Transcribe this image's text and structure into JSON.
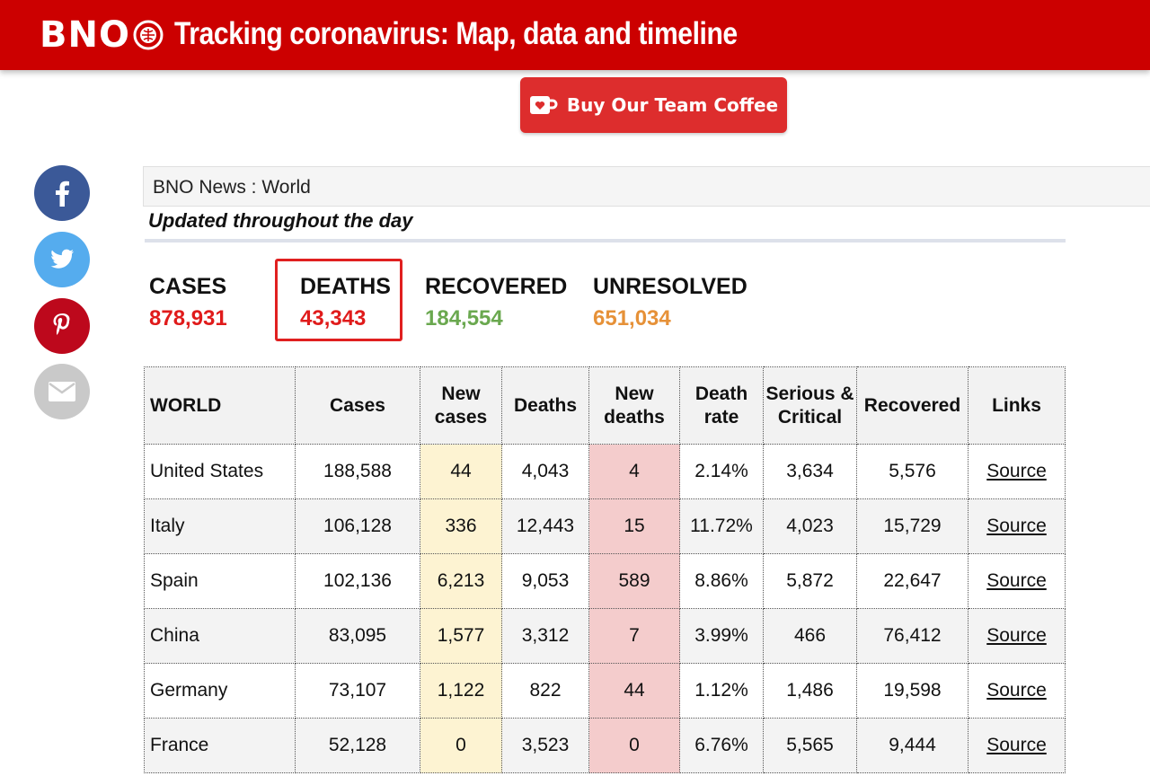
{
  "header": {
    "logo_text": "BNO",
    "title": "Tracking coronavirus: Map, data and timeline"
  },
  "coffee_button": {
    "label": "Buy Our Team Coffee",
    "icon": "coffee-cup-heart-icon"
  },
  "social": [
    {
      "name": "facebook",
      "icon": "facebook-icon",
      "color": "#3b5998"
    },
    {
      "name": "twitter",
      "icon": "twitter-icon",
      "color": "#55acee"
    },
    {
      "name": "pinterest",
      "icon": "pinterest-icon",
      "color": "#bd081c"
    },
    {
      "name": "email",
      "icon": "email-icon",
      "color": "#c9c9c9"
    }
  ],
  "breadcrumb": "BNO News : World",
  "updated_text": "Updated throughout the day",
  "stats": {
    "cases": {
      "label": "CASES",
      "value": "878,931",
      "color": "#e01b1b"
    },
    "deaths": {
      "label": "DEATHS",
      "value": "43,343",
      "color": "#e01b1b"
    },
    "recovered": {
      "label": "RECOVERED",
      "value": "184,554",
      "color": "#6aa84f"
    },
    "unresolved": {
      "label": "UNRESOLVED",
      "value": "651,034",
      "color": "#e69138"
    }
  },
  "table": {
    "headers": [
      "WORLD",
      "Cases",
      "New cases",
      "Deaths",
      "New deaths",
      "Death rate",
      "Serious & Critical",
      "Recovered",
      "Links"
    ],
    "rows": [
      [
        "United States",
        "188,588",
        "44",
        "4,043",
        "4",
        "2.14%",
        "3,634",
        "5,576",
        "Source"
      ],
      [
        "Italy",
        "106,128",
        "336",
        "12,443",
        "15",
        "11.72%",
        "4,023",
        "15,729",
        "Source"
      ],
      [
        "Spain",
        "102,136",
        "6,213",
        "9,053",
        "589",
        "8.86%",
        "5,872",
        "22,647",
        "Source"
      ],
      [
        "China",
        "83,095",
        "1,577",
        "3,312",
        "7",
        "3.99%",
        "466",
        "76,412",
        "Source"
      ],
      [
        "Germany",
        "73,107",
        "1,122",
        "822",
        "44",
        "1.12%",
        "1,486",
        "19,598",
        "Source"
      ],
      [
        "France",
        "52,128",
        "0",
        "3,523",
        "0",
        "6.76%",
        "5,565",
        "9,444",
        "Source"
      ]
    ]
  },
  "colors": {
    "brand_red": "#cc0000",
    "new_cases_bg": "#fdf3d2",
    "new_deaths_bg": "#f4cccc"
  }
}
